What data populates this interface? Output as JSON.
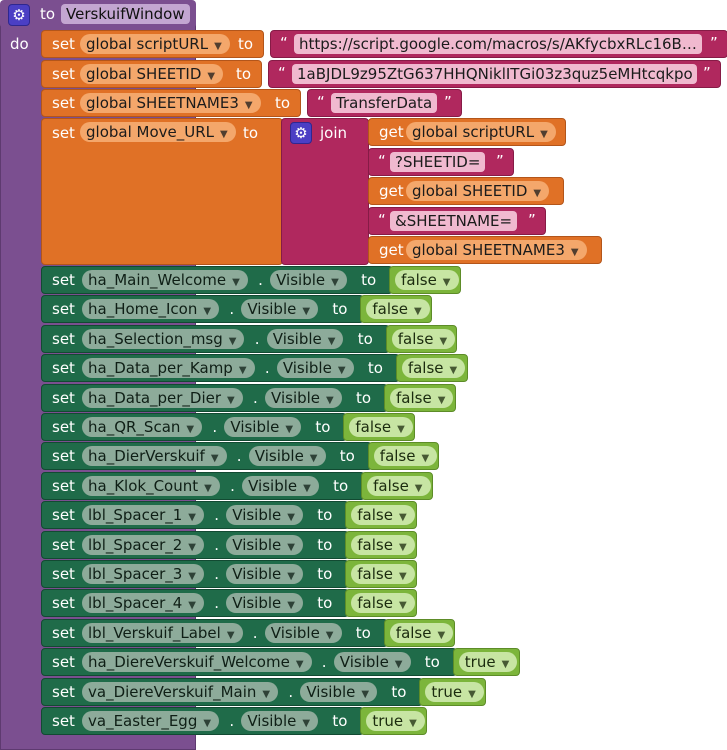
{
  "procedure": {
    "to_label": "to",
    "name": "VerskuifWindow",
    "do_label": "do"
  },
  "keywords": {
    "set": "set",
    "to": "to",
    "get": "get",
    "join": "join",
    "dot": ".",
    "open_quote": "“",
    "close_quote": "”",
    "dropdown": "▼"
  },
  "globals": [
    {
      "var": "global scriptURL",
      "value": "https://script.google.com/macros/s/AKfycbxRLc16B…"
    },
    {
      "var": "global SHEETID",
      "value": "1aBJDL9z95ZtG637HHQNiklITGi03z3quz5eMHtcqkpo"
    },
    {
      "var": "global SHEETNAME3",
      "value": "TransferData"
    }
  ],
  "move_url": {
    "var": "global Move_URL",
    "parts": [
      {
        "kind": "get",
        "value": "global scriptURL"
      },
      {
        "kind": "text",
        "value": "?SHEETID="
      },
      {
        "kind": "get",
        "value": "global SHEETID"
      },
      {
        "kind": "text",
        "value": "&SHEETNAME="
      },
      {
        "kind": "get",
        "value": "global SHEETNAME3"
      }
    ]
  },
  "props": [
    {
      "component": "ha_Main_Welcome",
      "prop": "Visible",
      "value": "false"
    },
    {
      "component": "ha_Home_Icon",
      "prop": "Visible",
      "value": "false"
    },
    {
      "component": "ha_Selection_msg",
      "prop": "Visible",
      "value": "false"
    },
    {
      "component": "ha_Data_per_Kamp",
      "prop": "Visible",
      "value": "false"
    },
    {
      "component": "ha_Data_per_Dier",
      "prop": "Visible",
      "value": "false"
    },
    {
      "component": "ha_QR_Scan",
      "prop": "Visible",
      "value": "false"
    },
    {
      "component": "ha_DierVerskuif",
      "prop": "Visible",
      "value": "false"
    },
    {
      "component": "ha_Klok_Count",
      "prop": "Visible",
      "value": "false"
    },
    {
      "component": "lbl_Spacer_1",
      "prop": "Visible",
      "value": "false"
    },
    {
      "component": "lbl_Spacer_2",
      "prop": "Visible",
      "value": "false"
    },
    {
      "component": "lbl_Spacer_3",
      "prop": "Visible",
      "value": "false"
    },
    {
      "component": "lbl_Spacer_4",
      "prop": "Visible",
      "value": "false"
    },
    {
      "component": "lbl_Verskuif_Label",
      "prop": "Visible",
      "value": "false"
    },
    {
      "component": "ha_DiereVerskuif_Welcome",
      "prop": "Visible",
      "value": "true"
    },
    {
      "component": "va_DiereVerskuif_Main",
      "prop": "Visible",
      "value": "true"
    },
    {
      "component": "va_Easter_Egg",
      "prop": "Visible",
      "value": "true"
    }
  ],
  "colors": {
    "procedure": "#7b4f90",
    "variable_set": "#e07126",
    "text_literal": "#b0285e",
    "component_set": "#1f6b49",
    "boolean": "#7cb53b",
    "gear": "#4b3fc4"
  }
}
